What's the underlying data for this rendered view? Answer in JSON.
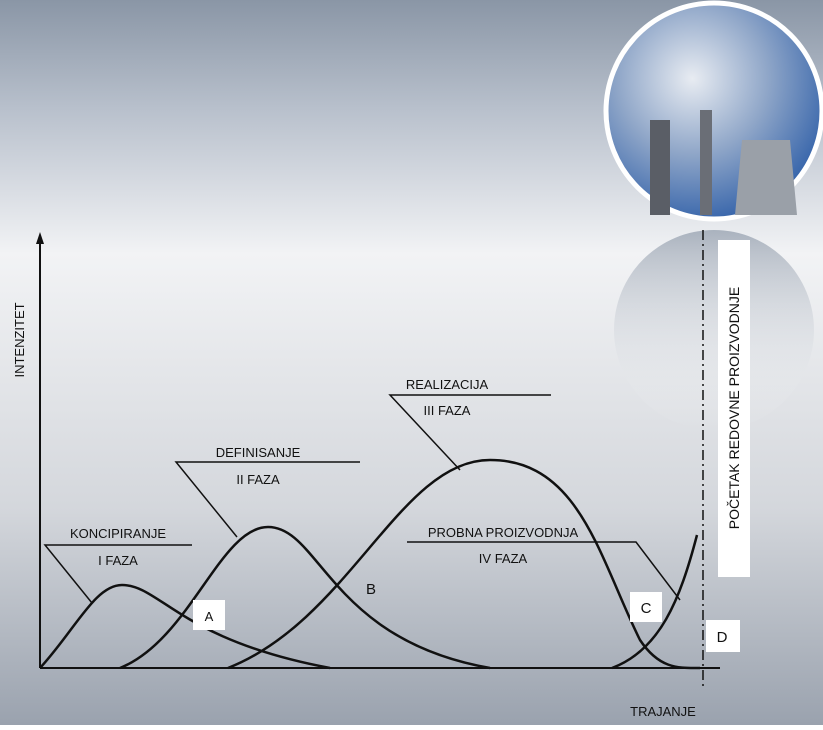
{
  "axes": {
    "y_label": "INTENZITET",
    "x_label": "TRAJANJE"
  },
  "phases": [
    {
      "name": "KONCIPIRANJE",
      "phase": "I FAZA"
    },
    {
      "name": "DEFINISANJE",
      "phase": "II FAZA"
    },
    {
      "name": "REALIZACIJA",
      "phase": "III FAZA"
    },
    {
      "name": "PROBNA PROIZVODNJA",
      "phase": "IV FAZA"
    }
  ],
  "points": [
    "A",
    "B",
    "C",
    "D"
  ],
  "milestone": "POČETAK REDOVNE PROIZVODNJE"
}
